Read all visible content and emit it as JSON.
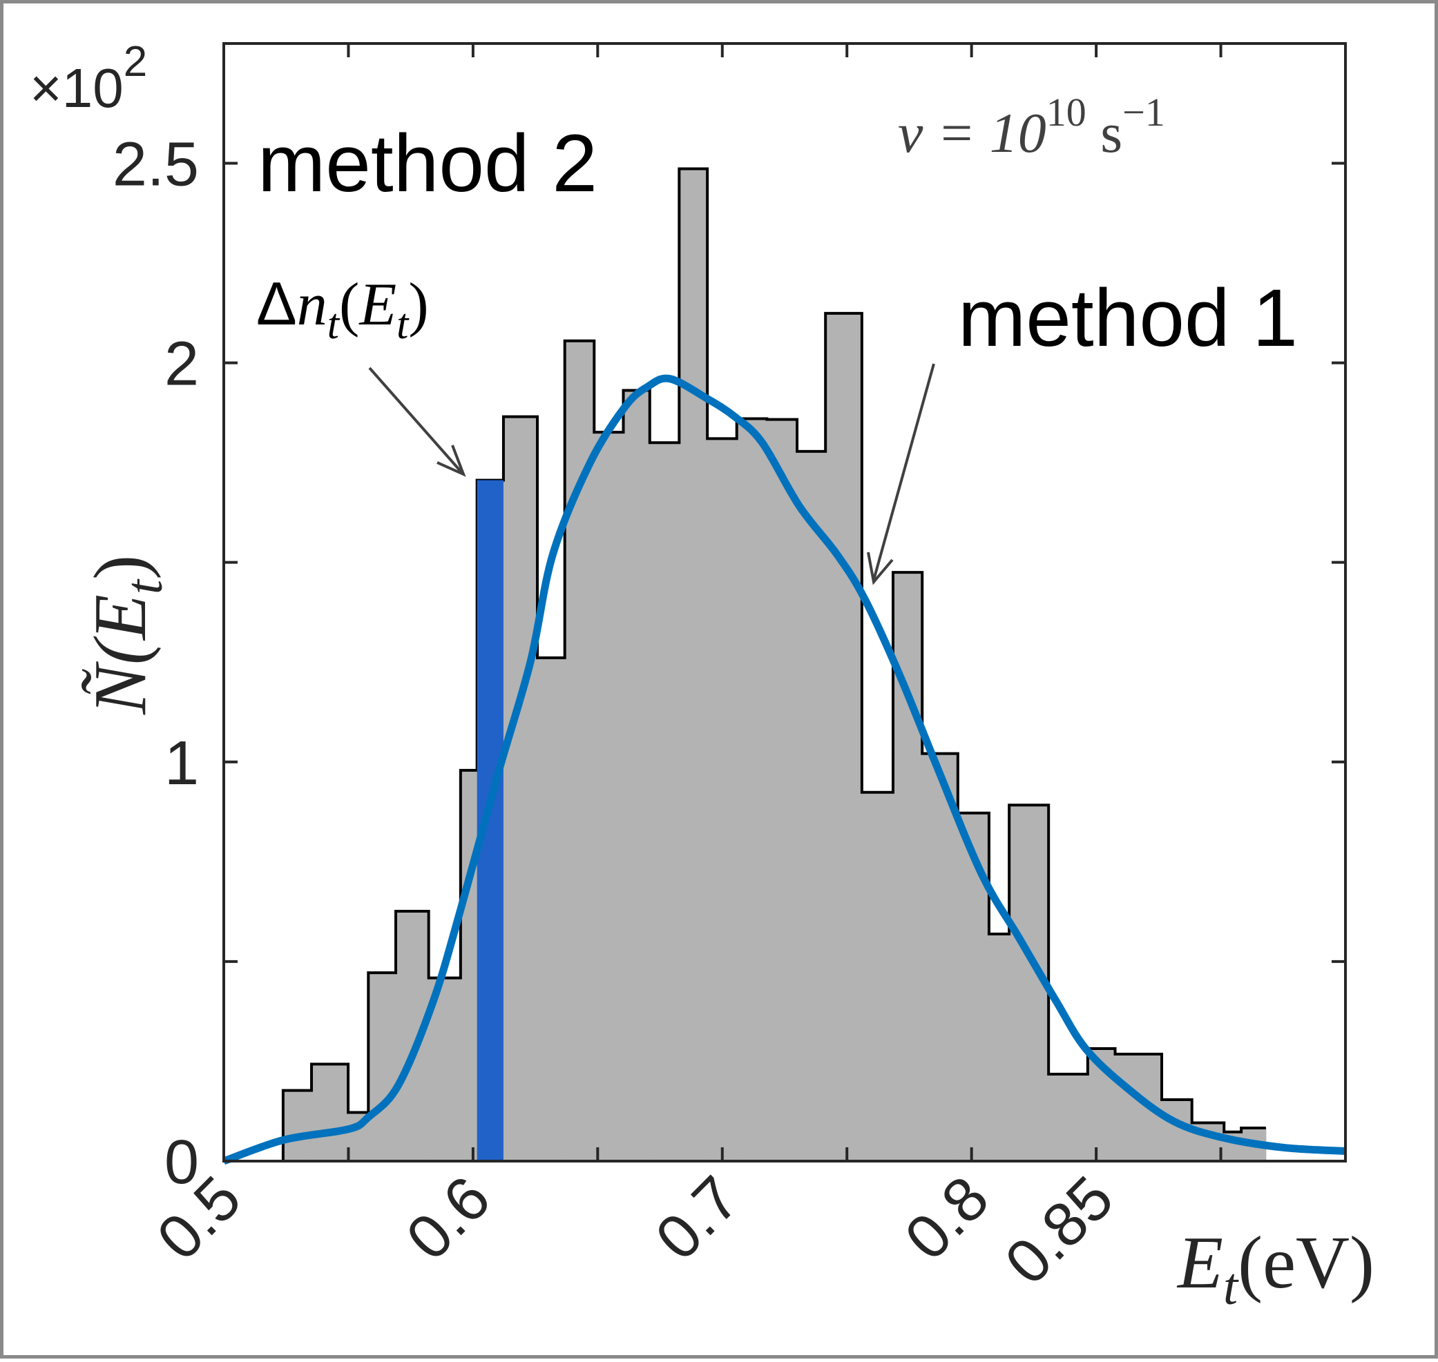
{
  "chart_data": {
    "type": "bar",
    "title": "",
    "xlabel": "E_t(eV)",
    "xlabel_parts": {
      "main": "E",
      "sub": "t",
      "unit": "(eV)"
    },
    "ylabel": "Ñ(E_t)",
    "ylabel_parts": {
      "main": "Ñ(E",
      "sub": "t",
      "close": ")"
    },
    "y_multiplier": "×10",
    "y_multiplier_exp": "2",
    "xlim": [
      0.5,
      0.95
    ],
    "ylim": [
      0,
      2.8
    ],
    "grid": false,
    "x_ticks": [
      0.5,
      0.55,
      0.6,
      0.65,
      0.7,
      0.75,
      0.8,
      0.85,
      0.9
    ],
    "x_tick_labels": [
      {
        "value": 0.5,
        "label": "0.5"
      },
      {
        "value": 0.6,
        "label": "0.6"
      },
      {
        "value": 0.7,
        "label": "0.7"
      },
      {
        "value": 0.8,
        "label": "0.8"
      },
      {
        "value": 0.85,
        "label": "0.85"
      }
    ],
    "y_ticks": [
      0,
      0.5,
      1,
      1.5,
      2,
      2.5
    ],
    "y_tick_labels": [
      {
        "value": 0,
        "label": "0"
      },
      {
        "value": 1,
        "label": "1"
      },
      {
        "value": 2,
        "label": "2"
      },
      {
        "value": 2.5,
        "label": "2.5"
      }
    ],
    "histogram": {
      "name": "method 2 histogram",
      "fill": "#b3b3b3",
      "edges": [
        0.5238,
        0.5352,
        0.5499,
        0.558,
        0.569,
        0.5822,
        0.595,
        0.6016,
        0.6122,
        0.6258,
        0.6368,
        0.6486,
        0.6603,
        0.6709,
        0.6827,
        0.694,
        0.7058,
        0.7179,
        0.73,
        0.7414,
        0.756,
        0.7685,
        0.7802,
        0.7945,
        0.807,
        0.8151,
        0.8309,
        0.8466,
        0.8576,
        0.8763,
        0.8884,
        0.9013,
        0.9082,
        0.9181
      ],
      "values": [
        0.177,
        0.243,
        0.122,
        0.472,
        0.626,
        0.459,
        0.979,
        1.706,
        1.865,
        1.261,
        2.055,
        1.826,
        1.931,
        1.8,
        2.486,
        1.81,
        1.86,
        1.858,
        1.778,
        2.124,
        0.924,
        1.475,
        1.021,
        0.872,
        0.569,
        0.892,
        0.218,
        0.282,
        0.268,
        0.154,
        0.096,
        0.073,
        0.083
      ]
    },
    "highlight_bin": {
      "name": "Δn_t(E_t)",
      "x0": 0.6016,
      "x1": 0.6122,
      "value": 1.706,
      "color": "#2062c8"
    },
    "series": [
      {
        "name": "method 1",
        "type": "line",
        "color": "#0072bd",
        "x": [
          0.5,
          0.524,
          0.55,
          0.558,
          0.57,
          0.584,
          0.595,
          0.61,
          0.623,
          0.632,
          0.647,
          0.661,
          0.67,
          0.679,
          0.694,
          0.705,
          0.716,
          0.731,
          0.746,
          0.757,
          0.771,
          0.786,
          0.804,
          0.819,
          0.834,
          0.846,
          0.863,
          0.881,
          0.9,
          0.925,
          0.95
        ],
        "y": [
          0,
          0.053,
          0.08,
          0.11,
          0.19,
          0.4,
          0.63,
          0.97,
          1.25,
          1.52,
          1.75,
          1.89,
          1.94,
          1.96,
          1.91,
          1.865,
          1.8,
          1.64,
          1.52,
          1.41,
          1.22,
          0.99,
          0.72,
          0.56,
          0.4,
          0.28,
          0.18,
          0.1,
          0.06,
          0.034,
          0.025
        ]
      }
    ],
    "annotations": {
      "method2": "method 2",
      "method1": "method 1",
      "delta": {
        "prefix": "Δ",
        "n": "n",
        "sub1": "t",
        "open": "(",
        "E": "E",
        "sub2": "t",
        "close": ")"
      },
      "nu": {
        "lhs": "ν = 10",
        "exp": "10",
        "unit": " s",
        "unit_exp": "−1"
      }
    }
  }
}
